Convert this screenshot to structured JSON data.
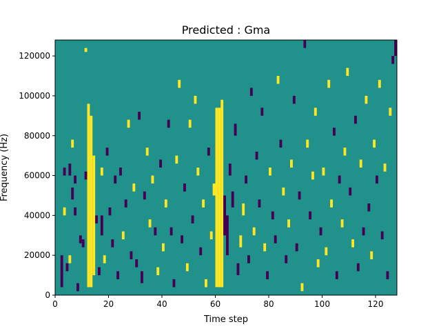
{
  "chart_data": {
    "type": "heatmap",
    "title": "Predicted : Gma",
    "xlabel": "Time step",
    "ylabel": "Frequency (Hz)",
    "xlim": [
      0,
      128
    ],
    "ylim": [
      0,
      128000
    ],
    "x_ticks": [
      0,
      20,
      40,
      60,
      80,
      100,
      120
    ],
    "x_tick_labels": [
      "0",
      "20",
      "40",
      "60",
      "80",
      "100",
      "120"
    ],
    "y_ticks": [
      0,
      20000,
      40000,
      60000,
      80000,
      100000,
      120000
    ],
    "y_tick_labels": [
      "0",
      "20000",
      "40000",
      "60000",
      "80000",
      "100000",
      "120000"
    ],
    "value_levels": {
      "low": -1,
      "mid": 0,
      "high": 1
    },
    "colors": {
      "low": "#440154",
      "mid": "#21918c",
      "high": "#fde725"
    },
    "background_value": 0,
    "grid": false,
    "cells": [
      {
        "t": 2,
        "f0": 4000,
        "f1": 20000,
        "v": -1
      },
      {
        "t": 3,
        "f0": 60000,
        "f1": 64000,
        "v": -1
      },
      {
        "t": 3,
        "f0": 40000,
        "f1": 44000,
        "v": 1
      },
      {
        "t": 4,
        "f0": 12000,
        "f1": 16000,
        "v": -1
      },
      {
        "t": 5,
        "f0": 60000,
        "f1": 66000,
        "v": -1
      },
      {
        "t": 5,
        "f0": 16000,
        "f1": 20000,
        "v": 1
      },
      {
        "t": 6,
        "f0": 74000,
        "f1": 78000,
        "v": 1
      },
      {
        "t": 6,
        "f0": 48000,
        "f1": 54000,
        "v": -1
      },
      {
        "t": 7,
        "f0": 40000,
        "f1": 44000,
        "v": -1
      },
      {
        "t": 7,
        "f0": 56000,
        "f1": 60000,
        "v": -1
      },
      {
        "t": 8,
        "f0": 2000,
        "f1": 6000,
        "v": -1
      },
      {
        "t": 9,
        "f0": 26000,
        "f1": 30000,
        "v": -1
      },
      {
        "t": 10,
        "f0": 24000,
        "f1": 28000,
        "v": -1
      },
      {
        "t": 11,
        "f0": 58000,
        "f1": 62000,
        "v": -1
      },
      {
        "t": 11,
        "f0": 122000,
        "f1": 124000,
        "v": 1
      },
      {
        "t": 12,
        "f0": 4000,
        "f1": 96000,
        "v": 1
      },
      {
        "t": 13,
        "f0": 4000,
        "f1": 90000,
        "v": 1
      },
      {
        "t": 14,
        "f0": 10000,
        "f1": 70000,
        "v": 1
      },
      {
        "t": 15,
        "f0": 36000,
        "f1": 40000,
        "v": -1
      },
      {
        "t": 16,
        "f0": 10000,
        "f1": 14000,
        "v": -1
      },
      {
        "t": 17,
        "f0": 30000,
        "f1": 40000,
        "v": -1
      },
      {
        "t": 17,
        "f0": 60000,
        "f1": 64000,
        "v": 1
      },
      {
        "t": 18,
        "f0": 16000,
        "f1": 20000,
        "v": 1
      },
      {
        "t": 19,
        "f0": 70000,
        "f1": 74000,
        "v": -1
      },
      {
        "t": 20,
        "f0": 40000,
        "f1": 44000,
        "v": -1
      },
      {
        "t": 21,
        "f0": 24000,
        "f1": 28000,
        "v": -1
      },
      {
        "t": 22,
        "f0": 56000,
        "f1": 60000,
        "v": -1
      },
      {
        "t": 23,
        "f0": 8000,
        "f1": 12000,
        "v": -1
      },
      {
        "t": 24,
        "f0": 60000,
        "f1": 64000,
        "v": -1
      },
      {
        "t": 25,
        "f0": 28000,
        "f1": 32000,
        "v": 1
      },
      {
        "t": 26,
        "f0": 44000,
        "f1": 48000,
        "v": -1
      },
      {
        "t": 27,
        "f0": 84000,
        "f1": 88000,
        "v": 1
      },
      {
        "t": 28,
        "f0": 18000,
        "f1": 22000,
        "v": -1
      },
      {
        "t": 29,
        "f0": 52000,
        "f1": 56000,
        "v": 1
      },
      {
        "t": 30,
        "f0": 14000,
        "f1": 18000,
        "v": -1
      },
      {
        "t": 31,
        "f0": 88000,
        "f1": 92000,
        "v": -1
      },
      {
        "t": 32,
        "f0": 6000,
        "f1": 12000,
        "v": -1
      },
      {
        "t": 33,
        "f0": 48000,
        "f1": 52000,
        "v": -1
      },
      {
        "t": 34,
        "f0": 70000,
        "f1": 74000,
        "v": 1
      },
      {
        "t": 35,
        "f0": 34000,
        "f1": 38000,
        "v": 1
      },
      {
        "t": 36,
        "f0": 56000,
        "f1": 60000,
        "v": 1
      },
      {
        "t": 37,
        "f0": 30000,
        "f1": 34000,
        "v": -1
      },
      {
        "t": 38,
        "f0": 10000,
        "f1": 14000,
        "v": 1
      },
      {
        "t": 39,
        "f0": 64000,
        "f1": 68000,
        "v": -1
      },
      {
        "t": 40,
        "f0": 22000,
        "f1": 26000,
        "v": 1
      },
      {
        "t": 41,
        "f0": 44000,
        "f1": 48000,
        "v": 1
      },
      {
        "t": 42,
        "f0": 84000,
        "f1": 88000,
        "v": -1
      },
      {
        "t": 43,
        "f0": 30000,
        "f1": 34000,
        "v": -1
      },
      {
        "t": 44,
        "f0": 4000,
        "f1": 8000,
        "v": -1
      },
      {
        "t": 45,
        "f0": 66000,
        "f1": 70000,
        "v": 1
      },
      {
        "t": 46,
        "f0": 104000,
        "f1": 108000,
        "v": 1
      },
      {
        "t": 47,
        "f0": 26000,
        "f1": 30000,
        "v": -1
      },
      {
        "t": 48,
        "f0": 52000,
        "f1": 56000,
        "v": -1
      },
      {
        "t": 49,
        "f0": 12000,
        "f1": 16000,
        "v": 1
      },
      {
        "t": 50,
        "f0": 84000,
        "f1": 88000,
        "v": 1
      },
      {
        "t": 51,
        "f0": 36000,
        "f1": 40000,
        "v": -1
      },
      {
        "t": 52,
        "f0": 96000,
        "f1": 100000,
        "v": 1
      },
      {
        "t": 53,
        "f0": 60000,
        "f1": 64000,
        "v": 1
      },
      {
        "t": 54,
        "f0": 20000,
        "f1": 24000,
        "v": -1
      },
      {
        "t": 55,
        "f0": 44000,
        "f1": 48000,
        "v": 1
      },
      {
        "t": 56,
        "f0": 4000,
        "f1": 8000,
        "v": 1
      },
      {
        "t": 57,
        "f0": 70000,
        "f1": 74000,
        "v": -1
      },
      {
        "t": 58,
        "f0": 28000,
        "f1": 32000,
        "v": 1
      },
      {
        "t": 59,
        "f0": 50000,
        "f1": 56000,
        "v": 1
      },
      {
        "t": 60,
        "f0": 4000,
        "f1": 94000,
        "v": 1
      },
      {
        "t": 61,
        "f0": 4000,
        "f1": 94000,
        "v": 1
      },
      {
        "t": 62,
        "f0": 4000,
        "f1": 98000,
        "v": 1
      },
      {
        "t": 63,
        "f0": 30000,
        "f1": 50000,
        "v": -1
      },
      {
        "t": 64,
        "f0": 20000,
        "f1": 40000,
        "v": -1
      },
      {
        "t": 65,
        "f0": 60000,
        "f1": 66000,
        "v": -1
      },
      {
        "t": 66,
        "f0": 44000,
        "f1": 52000,
        "v": -1
      },
      {
        "t": 67,
        "f0": 80000,
        "f1": 86000,
        "v": -1
      },
      {
        "t": 68,
        "f0": 10000,
        "f1": 16000,
        "v": -1
      },
      {
        "t": 69,
        "f0": 24000,
        "f1": 30000,
        "v": 1
      },
      {
        "t": 70,
        "f0": 40000,
        "f1": 46000,
        "v": 1
      },
      {
        "t": 71,
        "f0": 56000,
        "f1": 60000,
        "v": -1
      },
      {
        "t": 72,
        "f0": 16000,
        "f1": 20000,
        "v": -1
      },
      {
        "t": 73,
        "f0": 100000,
        "f1": 104000,
        "v": -1
      },
      {
        "t": 74,
        "f0": 30000,
        "f1": 34000,
        "v": 1
      },
      {
        "t": 75,
        "f0": 68000,
        "f1": 72000,
        "v": -1
      },
      {
        "t": 76,
        "f0": 44000,
        "f1": 48000,
        "v": -1
      },
      {
        "t": 77,
        "f0": 90000,
        "f1": 94000,
        "v": -1
      },
      {
        "t": 78,
        "f0": 22000,
        "f1": 26000,
        "v": 1
      },
      {
        "t": 79,
        "f0": 8000,
        "f1": 12000,
        "v": -1
      },
      {
        "t": 80,
        "f0": 60000,
        "f1": 64000,
        "v": 1
      },
      {
        "t": 81,
        "f0": 38000,
        "f1": 42000,
        "v": -1
      },
      {
        "t": 82,
        "f0": 26000,
        "f1": 30000,
        "v": -1
      },
      {
        "t": 83,
        "f0": 106000,
        "f1": 110000,
        "v": 1
      },
      {
        "t": 84,
        "f0": 74000,
        "f1": 78000,
        "v": -1
      },
      {
        "t": 85,
        "f0": 50000,
        "f1": 54000,
        "v": 1
      },
      {
        "t": 86,
        "f0": 16000,
        "f1": 20000,
        "v": -1
      },
      {
        "t": 87,
        "f0": 34000,
        "f1": 38000,
        "v": 1
      },
      {
        "t": 88,
        "f0": 64000,
        "f1": 68000,
        "v": 1
      },
      {
        "t": 89,
        "f0": 96000,
        "f1": 100000,
        "v": -1
      },
      {
        "t": 90,
        "f0": 22000,
        "f1": 26000,
        "v": -1
      },
      {
        "t": 91,
        "f0": 48000,
        "f1": 52000,
        "v": -1
      },
      {
        "t": 92,
        "f0": 2000,
        "f1": 6000,
        "v": 1
      },
      {
        "t": 93,
        "f0": 124000,
        "f1": 128000,
        "v": -1
      },
      {
        "t": 94,
        "f0": 74000,
        "f1": 78000,
        "v": 1
      },
      {
        "t": 95,
        "f0": 38000,
        "f1": 42000,
        "v": -1
      },
      {
        "t": 96,
        "f0": 58000,
        "f1": 62000,
        "v": 1
      },
      {
        "t": 97,
        "f0": 90000,
        "f1": 94000,
        "v": 1
      },
      {
        "t": 98,
        "f0": 14000,
        "f1": 18000,
        "v": 1
      },
      {
        "t": 99,
        "f0": 30000,
        "f1": 34000,
        "v": -1
      },
      {
        "t": 100,
        "f0": 60000,
        "f1": 64000,
        "v": 1
      },
      {
        "t": 101,
        "f0": 20000,
        "f1": 24000,
        "v": 1
      },
      {
        "t": 102,
        "f0": 104000,
        "f1": 108000,
        "v": 1
      },
      {
        "t": 103,
        "f0": 44000,
        "f1": 48000,
        "v": 1
      },
      {
        "t": 104,
        "f0": 80000,
        "f1": 84000,
        "v": -1
      },
      {
        "t": 105,
        "f0": 8000,
        "f1": 12000,
        "v": -1
      },
      {
        "t": 106,
        "f0": 56000,
        "f1": 60000,
        "v": -1
      },
      {
        "t": 107,
        "f0": 34000,
        "f1": 38000,
        "v": 1
      },
      {
        "t": 108,
        "f0": 70000,
        "f1": 74000,
        "v": 1
      },
      {
        "t": 109,
        "f0": 110000,
        "f1": 114000,
        "v": 1
      },
      {
        "t": 110,
        "f0": 50000,
        "f1": 54000,
        "v": -1
      },
      {
        "t": 111,
        "f0": 24000,
        "f1": 28000,
        "v": 1
      },
      {
        "t": 112,
        "f0": 86000,
        "f1": 90000,
        "v": -1
      },
      {
        "t": 113,
        "f0": 12000,
        "f1": 16000,
        "v": -1
      },
      {
        "t": 114,
        "f0": 64000,
        "f1": 68000,
        "v": 1
      },
      {
        "t": 115,
        "f0": 30000,
        "f1": 34000,
        "v": -1
      },
      {
        "t": 116,
        "f0": 96000,
        "f1": 100000,
        "v": 1
      },
      {
        "t": 117,
        "f0": 42000,
        "f1": 46000,
        "v": -1
      },
      {
        "t": 118,
        "f0": 18000,
        "f1": 22000,
        "v": 1
      },
      {
        "t": 119,
        "f0": 74000,
        "f1": 78000,
        "v": 1
      },
      {
        "t": 120,
        "f0": 56000,
        "f1": 60000,
        "v": -1
      },
      {
        "t": 121,
        "f0": 104000,
        "f1": 108000,
        "v": 1
      },
      {
        "t": 122,
        "f0": 28000,
        "f1": 32000,
        "v": -1
      },
      {
        "t": 123,
        "f0": 62000,
        "f1": 66000,
        "v": 1
      },
      {
        "t": 124,
        "f0": 8000,
        "f1": 12000,
        "v": -1
      },
      {
        "t": 125,
        "f0": 90000,
        "f1": 94000,
        "v": 1
      },
      {
        "t": 126,
        "f0": 116000,
        "f1": 120000,
        "v": -1
      },
      {
        "t": 127,
        "f0": 120000,
        "f1": 128000,
        "v": -1
      }
    ]
  }
}
